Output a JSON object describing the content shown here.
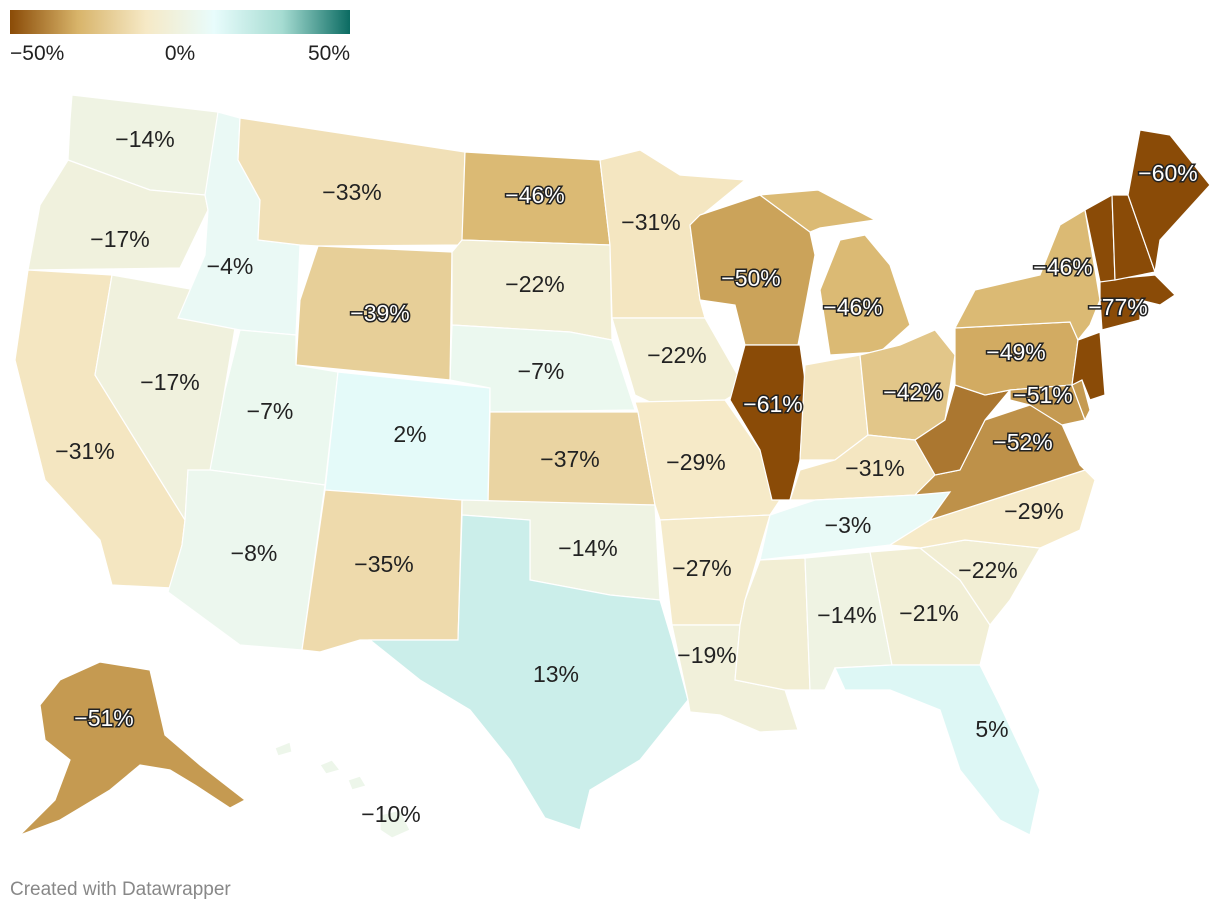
{
  "legend": {
    "ticks": [
      "−50%",
      "0%",
      "50%"
    ],
    "colors": [
      "#8a4b07",
      "#d8b46a",
      "#f6e9c6",
      "#e8fcfc",
      "#a6dcd2",
      "#0b6b62"
    ]
  },
  "credit": "Created with Datawrapper",
  "states": [
    {
      "id": "WA",
      "value": -14,
      "label": "−14%"
    },
    {
      "id": "OR",
      "value": -17,
      "label": "−17%"
    },
    {
      "id": "CA",
      "value": -31,
      "label": "−31%"
    },
    {
      "id": "NV",
      "value": -17,
      "label": "−17%"
    },
    {
      "id": "ID",
      "value": -4,
      "label": "−4%"
    },
    {
      "id": "MT",
      "value": -33,
      "label": "−33%"
    },
    {
      "id": "WY",
      "value": -39,
      "label": "−39%"
    },
    {
      "id": "UT",
      "value": -7,
      "label": "−7%"
    },
    {
      "id": "AZ",
      "value": -8,
      "label": "−8%"
    },
    {
      "id": "CO",
      "value": 2,
      "label": "2%"
    },
    {
      "id": "NM",
      "value": -35,
      "label": "−35%"
    },
    {
      "id": "ND",
      "value": -46,
      "label": "−46%"
    },
    {
      "id": "SD",
      "value": -22,
      "label": "−22%"
    },
    {
      "id": "NE",
      "value": -7,
      "label": "−7%"
    },
    {
      "id": "KS",
      "value": -37,
      "label": "−37%"
    },
    {
      "id": "OK",
      "value": -14,
      "label": "−14%"
    },
    {
      "id": "TX",
      "value": 13,
      "label": "13%"
    },
    {
      "id": "MN",
      "value": -31,
      "label": "−31%"
    },
    {
      "id": "IA",
      "value": -22,
      "label": "−22%"
    },
    {
      "id": "MO",
      "value": -29,
      "label": "−29%"
    },
    {
      "id": "AR",
      "value": -27,
      "label": "−27%"
    },
    {
      "id": "LA",
      "value": -19,
      "label": "−19%"
    },
    {
      "id": "WI",
      "value": -50,
      "label": "−50%"
    },
    {
      "id": "IL",
      "value": -61,
      "label": "−61%"
    },
    {
      "id": "MI",
      "value": -46,
      "label": "−46%"
    },
    {
      "id": "IN",
      "value": -31,
      "label": ""
    },
    {
      "id": "OH",
      "value": -42,
      "label": "−42%"
    },
    {
      "id": "KY",
      "value": -31,
      "label": "−31%"
    },
    {
      "id": "TN",
      "value": -3,
      "label": "−3%"
    },
    {
      "id": "MS",
      "value": -22,
      "label": ""
    },
    {
      "id": "AL",
      "value": -14,
      "label": "−14%"
    },
    {
      "id": "GA",
      "value": -21,
      "label": "−21%"
    },
    {
      "id": "FL",
      "value": 5,
      "label": "5%"
    },
    {
      "id": "SC",
      "value": -22,
      "label": "−22%"
    },
    {
      "id": "NC",
      "value": -29,
      "label": "−29%"
    },
    {
      "id": "VA",
      "value": -52,
      "label": "−52%"
    },
    {
      "id": "WV",
      "value": -55,
      "label": ""
    },
    {
      "id": "PA",
      "value": -49,
      "label": "−49%"
    },
    {
      "id": "NY",
      "value": -46,
      "label": "−46%"
    },
    {
      "id": "MD",
      "value": -51,
      "label": "−51%"
    },
    {
      "id": "DE",
      "value": -51,
      "label": ""
    },
    {
      "id": "NJ",
      "value": -60,
      "label": ""
    },
    {
      "id": "CT",
      "value": -77,
      "label": ""
    },
    {
      "id": "MA",
      "value": -77,
      "label": "−77%"
    },
    {
      "id": "VT",
      "value": -60,
      "label": ""
    },
    {
      "id": "NH",
      "value": -60,
      "label": ""
    },
    {
      "id": "ME",
      "value": -60,
      "label": "−60%"
    },
    {
      "id": "AK",
      "value": -51,
      "label": "−51%"
    },
    {
      "id": "HI",
      "value": -10,
      "label": "−10%"
    }
  ]
}
